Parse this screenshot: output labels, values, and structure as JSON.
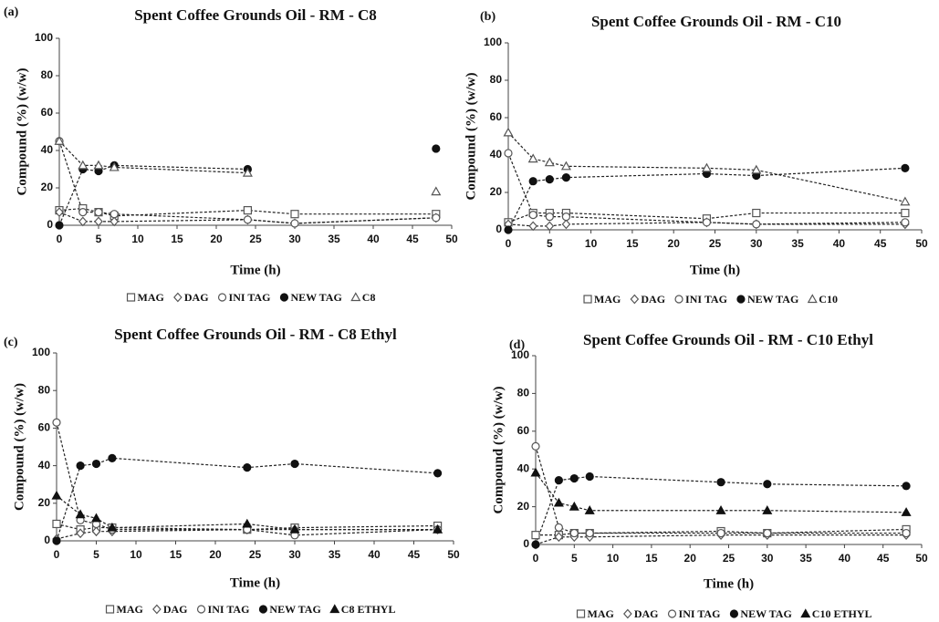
{
  "chart_data": [
    {
      "type": "scatter",
      "panel": "(a)",
      "title": "Spent Coffee Grounds Oil - RM - C8",
      "x_label": "Time  (h)",
      "y_label": "Compound  (%)  (w/w)",
      "x": [
        0,
        3,
        5,
        7,
        24,
        30,
        48
      ],
      "xlim": [
        0,
        50
      ],
      "xticks": [
        0,
        5,
        10,
        15,
        20,
        25,
        30,
        35,
        40,
        45,
        50
      ],
      "ylim": [
        0,
        100
      ],
      "yticks": [
        0,
        20,
        40,
        60,
        80,
        100
      ],
      "series": [
        {
          "name": "MAG",
          "marker": "square",
          "filled": false,
          "color": "#555555",
          "values": [
            8,
            9,
            7,
            5,
            8,
            6,
            6
          ]
        },
        {
          "name": "DAG",
          "marker": "diamond",
          "filled": false,
          "color": "#555555",
          "values": [
            7,
            2,
            2,
            2,
            3,
            1,
            4
          ]
        },
        {
          "name": "INI TAG",
          "marker": "circle",
          "filled": false,
          "color": "#555555",
          "values": [
            45,
            7,
            7,
            6,
            3,
            1,
            4
          ]
        },
        {
          "name": "NEW TAG",
          "marker": "circle",
          "filled": true,
          "color": "#111111",
          "values": [
            0,
            30,
            29,
            32,
            30,
            null,
            41
          ]
        },
        {
          "name": "C8",
          "marker": "triangle",
          "filled": false,
          "color": "#555555",
          "values": [
            45,
            32,
            32,
            31,
            28,
            null,
            18
          ]
        }
      ]
    },
    {
      "type": "scatter",
      "panel": "(b)",
      "title": "Spent Coffee Grounds Oil - RM - C10",
      "x_label": "Time  (h)",
      "y_label": "Compound  (%)  (w/w)",
      "x": [
        0,
        3,
        5,
        7,
        24,
        30,
        48
      ],
      "xlim": [
        0,
        50
      ],
      "xticks": [
        0,
        5,
        10,
        15,
        20,
        25,
        30,
        35,
        40,
        45,
        50
      ],
      "ylim": [
        0,
        100
      ],
      "yticks": [
        0,
        20,
        40,
        60,
        80,
        100
      ],
      "series": [
        {
          "name": "MAG",
          "marker": "square",
          "filled": false,
          "color": "#555555",
          "values": [
            4,
            9,
            9,
            9,
            6,
            9,
            9
          ]
        },
        {
          "name": "DAG",
          "marker": "diamond",
          "filled": false,
          "color": "#555555",
          "values": [
            3,
            2,
            2,
            3,
            4,
            3,
            3
          ]
        },
        {
          "name": "INI TAG",
          "marker": "circle",
          "filled": false,
          "color": "#555555",
          "values": [
            41,
            8,
            7,
            7,
            4,
            3,
            4
          ]
        },
        {
          "name": "NEW TAG",
          "marker": "circle",
          "filled": true,
          "color": "#111111",
          "values": [
            0,
            26,
            27,
            28,
            30,
            29,
            33
          ]
        },
        {
          "name": "C10",
          "marker": "triangle",
          "filled": false,
          "color": "#555555",
          "values": [
            52,
            38,
            36,
            34,
            33,
            32,
            15
          ]
        }
      ]
    },
    {
      "type": "scatter",
      "panel": "(c)",
      "title": "Spent Coffee Grounds Oil - RM - C8 Ethyl",
      "x_label": "Time  (h)",
      "y_label": "Compound  (%)  (w/w)",
      "x": [
        0,
        3,
        5,
        7,
        24,
        30,
        48
      ],
      "xlim": [
        0,
        50
      ],
      "xticks": [
        0,
        5,
        10,
        15,
        20,
        25,
        30,
        35,
        40,
        45,
        50
      ],
      "ylim": [
        0,
        100
      ],
      "yticks": [
        0,
        20,
        40,
        60,
        80,
        100
      ],
      "series": [
        {
          "name": "MAG",
          "marker": "square",
          "filled": false,
          "color": "#555555",
          "values": [
            9,
            6,
            7,
            7,
            6,
            7,
            8
          ]
        },
        {
          "name": "DAG",
          "marker": "diamond",
          "filled": false,
          "color": "#555555",
          "values": [
            1,
            4,
            5,
            5,
            6,
            6,
            6
          ]
        },
        {
          "name": "INI TAG",
          "marker": "circle",
          "filled": false,
          "color": "#555555",
          "values": [
            63,
            11,
            9,
            6,
            6,
            3,
            6
          ]
        },
        {
          "name": "NEW TAG",
          "marker": "circle",
          "filled": true,
          "color": "#111111",
          "values": [
            0,
            40,
            41,
            44,
            39,
            41,
            36
          ]
        },
        {
          "name": "C8 ETHYL",
          "marker": "triangle",
          "filled": true,
          "color": "#111111",
          "values": [
            24,
            14,
            12,
            7,
            9,
            6,
            6
          ]
        }
      ]
    },
    {
      "type": "scatter",
      "panel": "(d)",
      "title": "Spent Coffee Grounds Oil - RM - C10 Ethyl",
      "x_label": "Time  (h)",
      "y_label": "Compound  (%)  (w/w)",
      "x": [
        0,
        3,
        5,
        7,
        24,
        30,
        48
      ],
      "xlim": [
        0,
        50
      ],
      "xticks": [
        0,
        5,
        10,
        15,
        20,
        25,
        30,
        35,
        40,
        45,
        50
      ],
      "ylim": [
        0,
        100
      ],
      "yticks": [
        0,
        20,
        40,
        60,
        80,
        100
      ],
      "series": [
        {
          "name": "MAG",
          "marker": "square",
          "filled": false,
          "color": "#555555",
          "values": [
            5,
            5,
            6,
            6,
            7,
            6,
            8
          ]
        },
        {
          "name": "DAG",
          "marker": "diamond",
          "filled": false,
          "color": "#555555",
          "values": [
            0,
            4,
            4,
            4,
            5,
            5,
            5
          ]
        },
        {
          "name": "INI TAG",
          "marker": "circle",
          "filled": false,
          "color": "#555555",
          "values": [
            52,
            9,
            6,
            6,
            6,
            6,
            6
          ]
        },
        {
          "name": "NEW TAG",
          "marker": "circle",
          "filled": true,
          "color": "#111111",
          "values": [
            0,
            34,
            35,
            36,
            33,
            32,
            31
          ]
        },
        {
          "name": "C10 ETHYL",
          "marker": "triangle",
          "filled": true,
          "color": "#111111",
          "values": [
            38,
            22,
            20,
            18,
            18,
            18,
            17
          ]
        }
      ]
    }
  ]
}
